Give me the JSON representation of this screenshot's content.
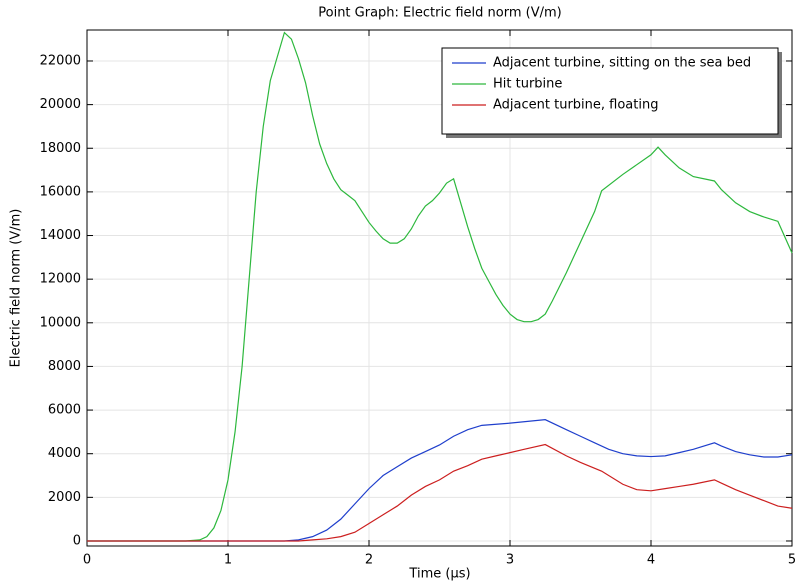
{
  "chart_data": {
    "type": "line",
    "title": "Point Graph: Electric field norm (V/m)",
    "x_label": "Time (µs)",
    "y_label": "Electric field norm (V/m)",
    "xlim": [
      0,
      5
    ],
    "ylim": [
      -230,
      23420
    ],
    "xticks": [
      0,
      1,
      2,
      3,
      4,
      5
    ],
    "yticks": [
      0,
      2000,
      4000,
      6000,
      8000,
      10000,
      12000,
      14000,
      16000,
      18000,
      20000,
      22000
    ],
    "grid": true,
    "legend": "upper right",
    "series": [
      {
        "name": "Adjacent turbine, sitting on the sea bed",
        "color": "#1f3fcc",
        "x": [
          0,
          1.4,
          1.5,
          1.6,
          1.7,
          1.8,
          1.9,
          2.0,
          2.1,
          2.2,
          2.3,
          2.4,
          2.5,
          2.6,
          2.7,
          2.8,
          3.0,
          3.25,
          3.4,
          3.5,
          3.6,
          3.7,
          3.8,
          3.9,
          4.0,
          4.1,
          4.2,
          4.3,
          4.45,
          4.5,
          4.6,
          4.7,
          4.8,
          4.9,
          5.0
        ],
        "values": [
          0,
          0,
          50,
          200,
          500,
          1000,
          1700,
          2400,
          3000,
          3400,
          3800,
          4100,
          4400,
          4800,
          5100,
          5300,
          5400,
          5560,
          5100,
          4800,
          4500,
          4200,
          4000,
          3900,
          3870,
          3900,
          4050,
          4200,
          4500,
          4350,
          4100,
          3950,
          3850,
          3850,
          3950
        ]
      },
      {
        "name": "Hit turbine",
        "color": "#2db83d",
        "x": [
          0,
          0.7,
          0.8,
          0.85,
          0.9,
          0.95,
          1.0,
          1.05,
          1.1,
          1.15,
          1.2,
          1.25,
          1.3,
          1.35,
          1.4,
          1.45,
          1.5,
          1.55,
          1.6,
          1.65,
          1.7,
          1.75,
          1.8,
          1.85,
          1.9,
          1.95,
          2.0,
          2.05,
          2.1,
          2.15,
          2.2,
          2.25,
          2.3,
          2.35,
          2.4,
          2.45,
          2.5,
          2.55,
          2.6,
          2.65,
          2.7,
          2.75,
          2.8,
          2.85,
          2.9,
          2.95,
          3.0,
          3.05,
          3.1,
          3.15,
          3.2,
          3.25,
          3.3,
          3.4,
          3.5,
          3.6,
          3.65,
          3.8,
          4.0,
          4.05,
          4.1,
          4.2,
          4.3,
          4.45,
          4.5,
          4.6,
          4.7,
          4.8,
          4.9,
          5.0
        ],
        "values": [
          0,
          0,
          50,
          200,
          600,
          1400,
          2800,
          5000,
          8000,
          12000,
          16000,
          19000,
          21100,
          22200,
          23300,
          23000,
          22100,
          21000,
          19500,
          18200,
          17300,
          16600,
          16100,
          15850,
          15600,
          15100,
          14600,
          14200,
          13850,
          13650,
          13650,
          13850,
          14300,
          14900,
          15350,
          15600,
          15950,
          16400,
          16600,
          15500,
          14400,
          13400,
          12500,
          11900,
          11300,
          10800,
          10400,
          10150,
          10050,
          10050,
          10150,
          10400,
          11000,
          12300,
          13700,
          15100,
          16050,
          16800,
          17700,
          18050,
          17700,
          17100,
          16700,
          16500,
          16100,
          15500,
          15100,
          14850,
          14650,
          13200
        ]
      },
      {
        "name": "Adjacent turbine, floating",
        "color": "#cc1f1f",
        "x": [
          0,
          1.5,
          1.6,
          1.7,
          1.8,
          1.9,
          2.0,
          2.1,
          2.2,
          2.3,
          2.4,
          2.5,
          2.6,
          2.7,
          2.8,
          2.9,
          3.0,
          3.1,
          3.25,
          3.4,
          3.5,
          3.65,
          3.8,
          3.9,
          4.0,
          4.1,
          4.2,
          4.3,
          4.45,
          4.5,
          4.6,
          4.7,
          4.8,
          4.9,
          5.0
        ],
        "values": [
          0,
          0,
          50,
          100,
          200,
          400,
          800,
          1200,
          1600,
          2100,
          2500,
          2800,
          3200,
          3450,
          3750,
          3900,
          4050,
          4200,
          4420,
          3900,
          3600,
          3200,
          2600,
          2350,
          2300,
          2400,
          2500,
          2600,
          2800,
          2650,
          2350,
          2100,
          1850,
          1600,
          1500
        ]
      }
    ]
  }
}
